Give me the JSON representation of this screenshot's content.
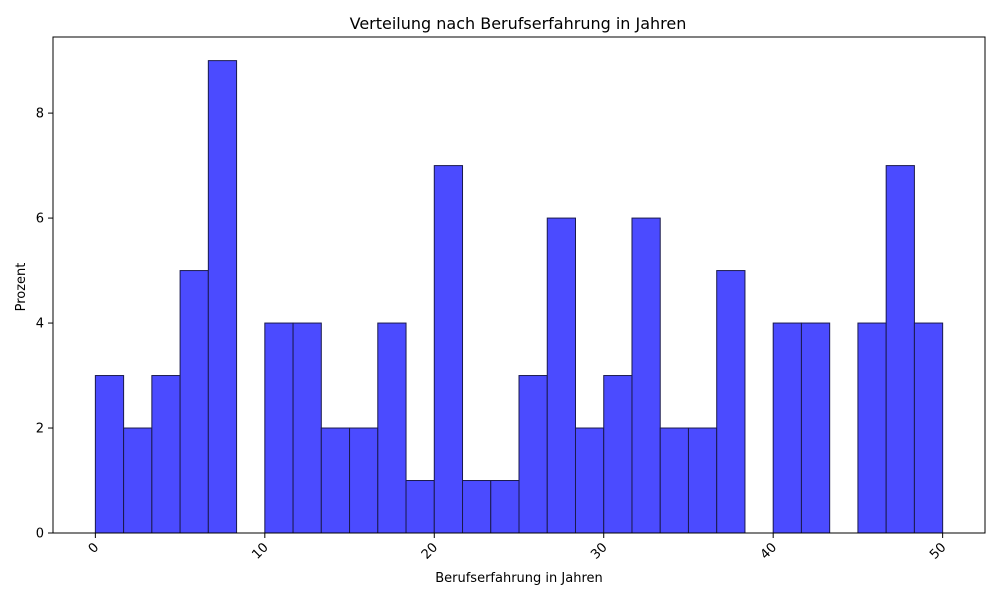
{
  "chart_data": {
    "type": "bar",
    "title": "Verteilung nach Berufserfahrung in Jahren",
    "xlabel": "Berufserfahrung in Jahren",
    "ylabel": "Prozent",
    "xlim": [
      -2.5,
      52.5
    ],
    "ylim": [
      0,
      9.45
    ],
    "bin_width": 1.6667,
    "bin_start": 0,
    "x_ticks": [
      0,
      10,
      20,
      30,
      40,
      50
    ],
    "y_ticks": [
      0,
      2,
      4,
      6,
      8
    ],
    "values": [
      3,
      2,
      3,
      5,
      9,
      0,
      4,
      4,
      2,
      2,
      4,
      1,
      7,
      1,
      1,
      3,
      6,
      2,
      3,
      6,
      2,
      2,
      5,
      0,
      4,
      4,
      0,
      4,
      7,
      4
    ],
    "bar_color": "#4b4bff",
    "edge_color": "#1a1a4d",
    "grid": false
  }
}
